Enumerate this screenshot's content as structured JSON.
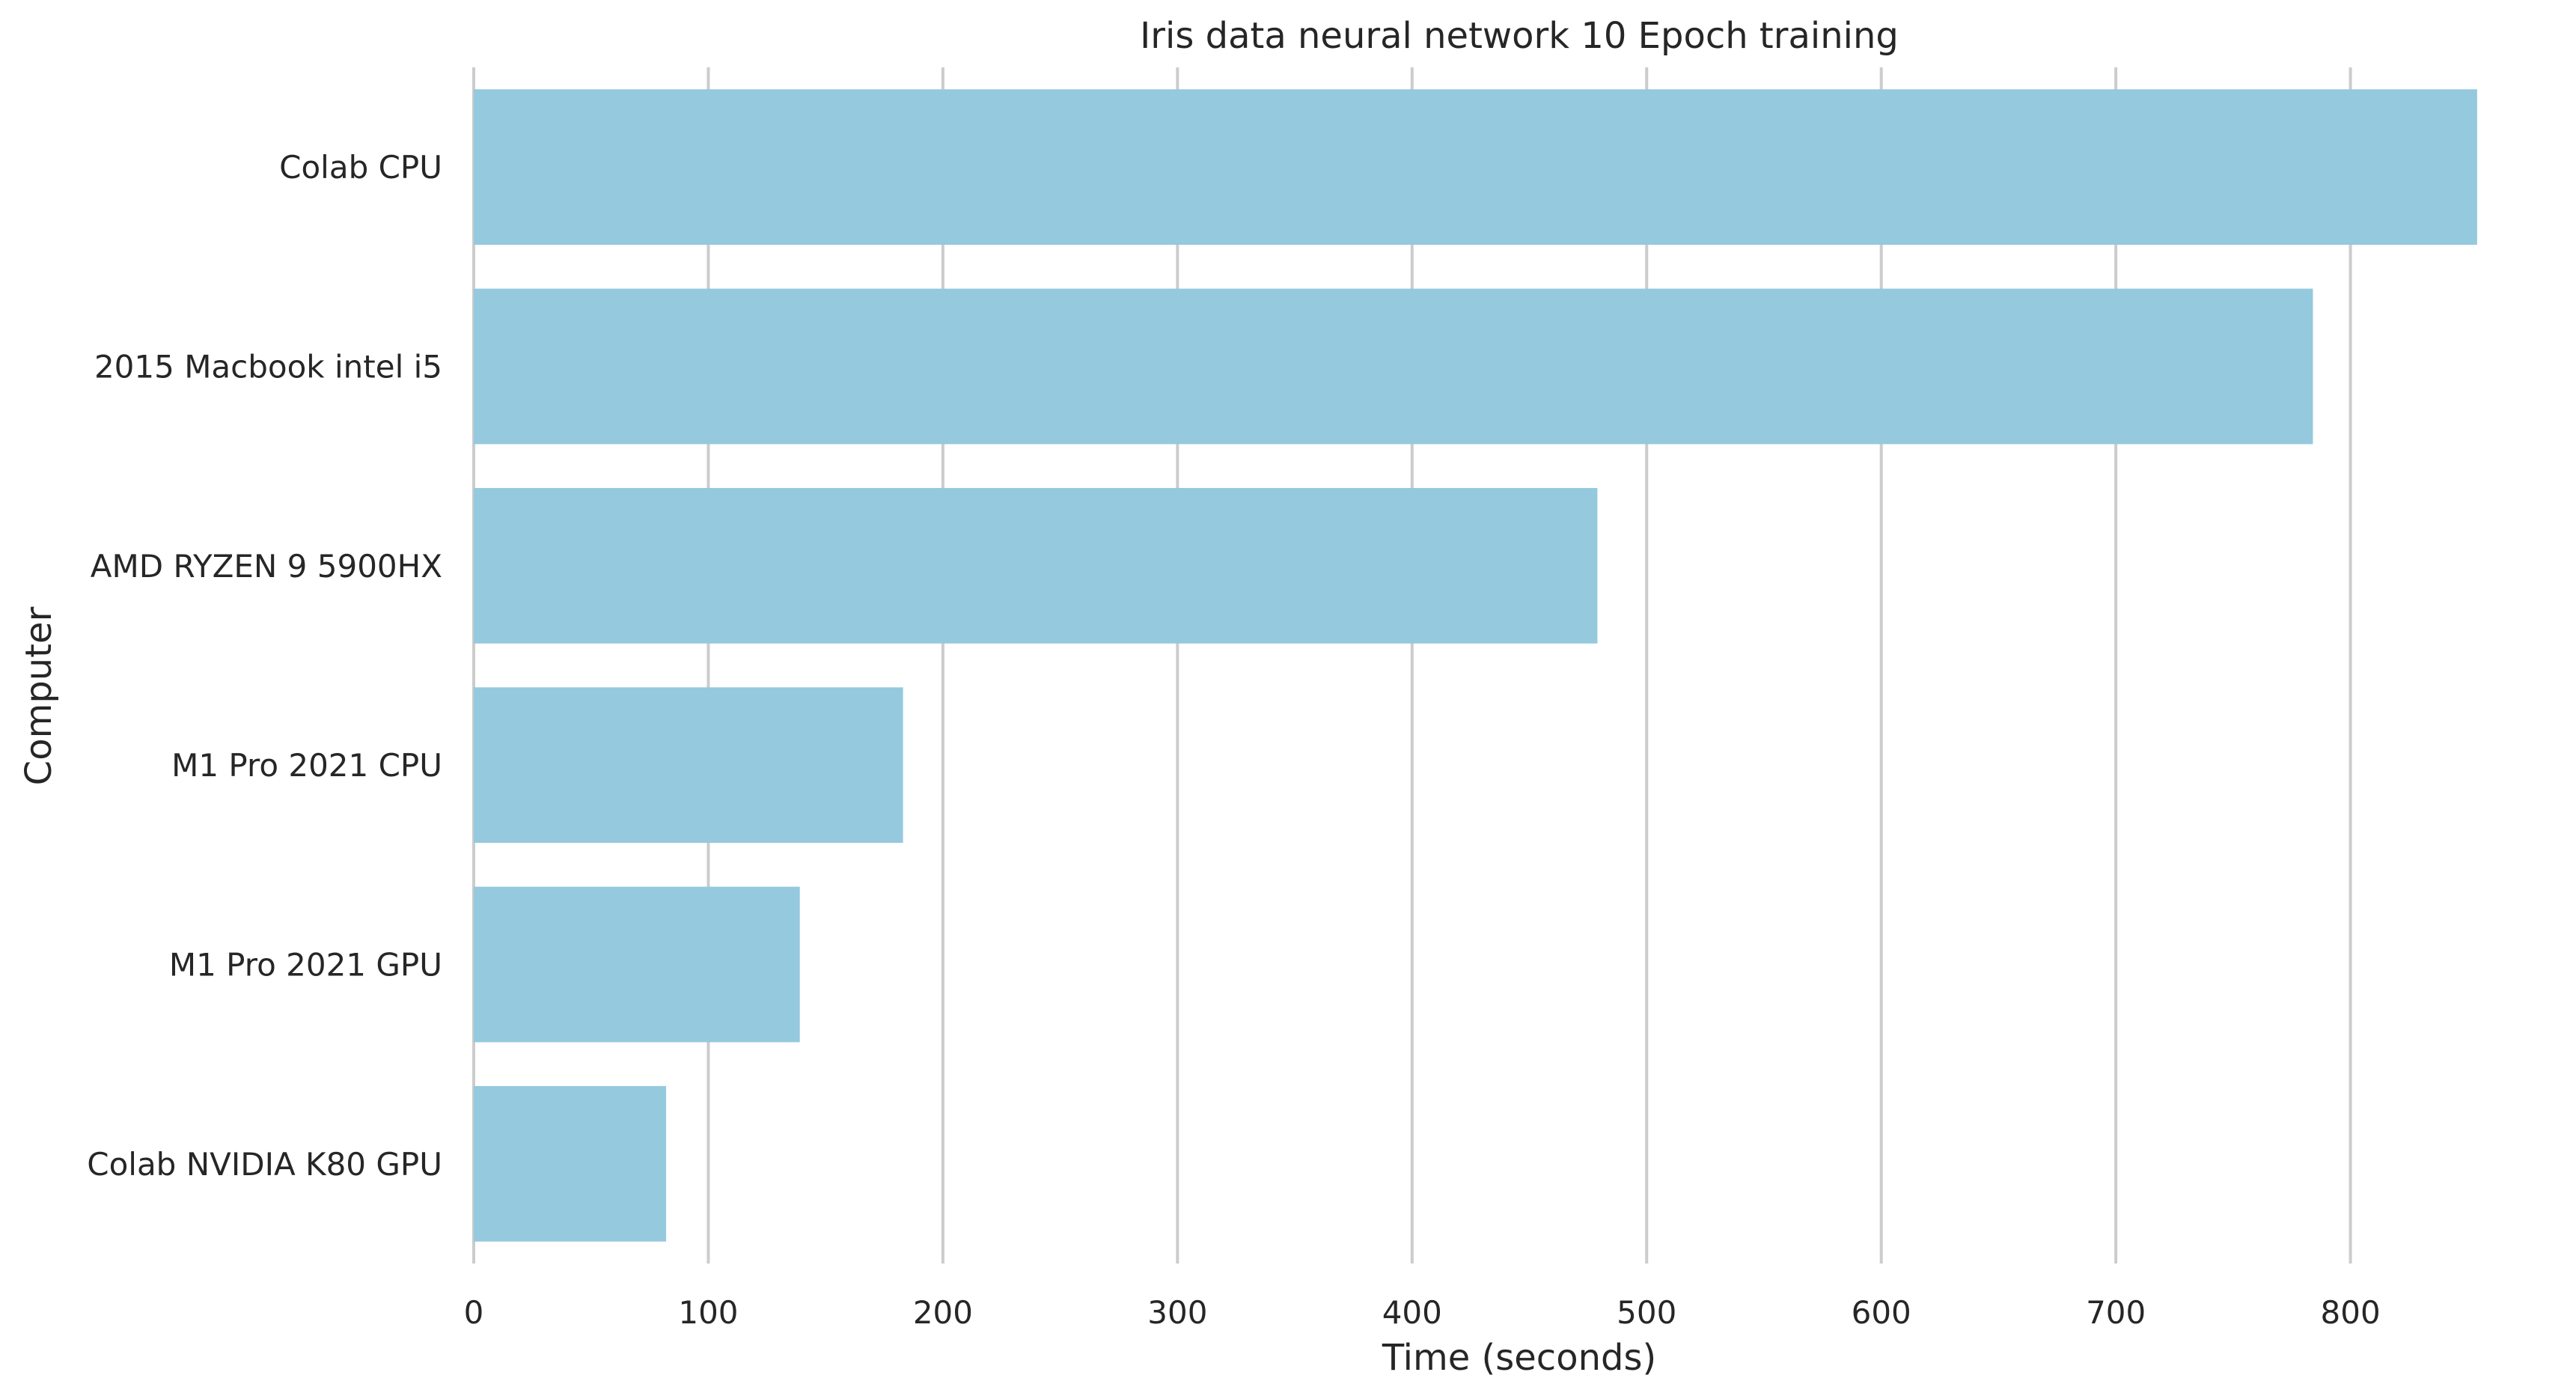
{
  "chart_data": {
    "type": "bar",
    "orientation": "horizontal",
    "title": "Iris data neural network 10 Epoch training",
    "xlabel": "Time (seconds)",
    "ylabel": "Computer",
    "categories": [
      "Colab CPU",
      "2015 Macbook intel i5",
      "AMD RYZEN 9 5900HX",
      "M1 Pro 2021 CPU",
      "M1 Pro 2021 GPU",
      "Colab NVIDIA K80 GPU"
    ],
    "values": [
      854,
      784,
      479,
      183,
      139,
      82
    ],
    "xlim": [
      0,
      855
    ],
    "xticks": [
      0,
      100,
      200,
      300,
      400,
      500,
      600,
      700,
      800
    ],
    "xtick_labels": [
      "0",
      "100",
      "200",
      "300",
      "400",
      "500",
      "600",
      "700",
      "800"
    ],
    "grid": "vertical",
    "bar_color": "#94c9de",
    "grid_color": "#cccccc"
  }
}
